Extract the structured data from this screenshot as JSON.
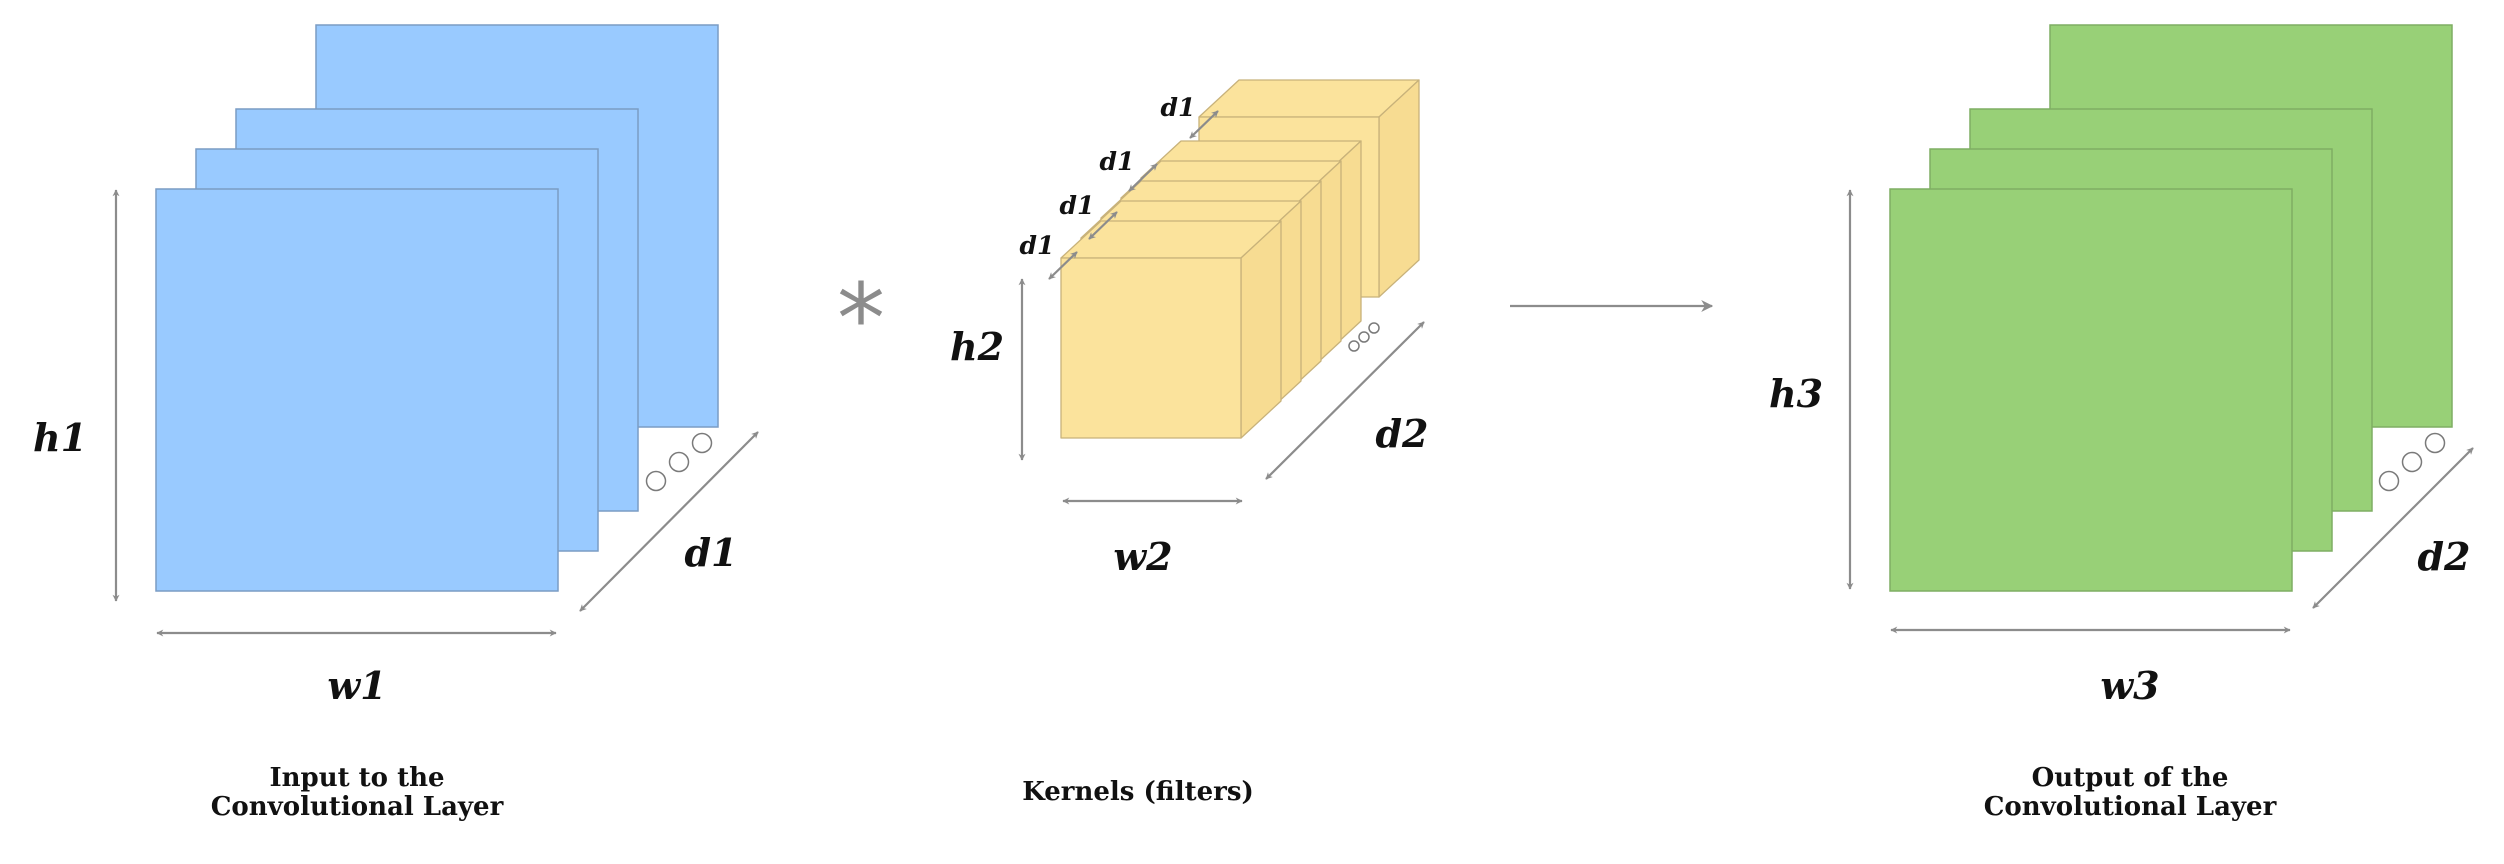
{
  "colors": {
    "input_fill": "#99caff",
    "input_stroke": "#7a9cc4",
    "kernel_fill": "#fbe39c",
    "kernel_side": "#f7dc92",
    "kernel_stroke": "#c8b27a",
    "output_fill": "#98d077",
    "output_stroke": "#7fae63",
    "arrow": "#8c8c8c",
    "text": "#111111"
  },
  "input": {
    "labels": {
      "height": "h1",
      "width": "w1",
      "depth": "d1"
    },
    "caption": [
      "Input to the",
      "Convolutional Layer"
    ]
  },
  "operator": "*",
  "kernels": {
    "labels": {
      "height": "h2",
      "width": "w2",
      "depth": "d2",
      "spacing": [
        "d1",
        "d1",
        "d1",
        "d1"
      ]
    },
    "caption": [
      "Kernels (filters)"
    ]
  },
  "output": {
    "labels": {
      "height": "h3",
      "width": "w3",
      "depth": "d2"
    },
    "caption": [
      "Output of the",
      "Convolutional Layer"
    ]
  }
}
